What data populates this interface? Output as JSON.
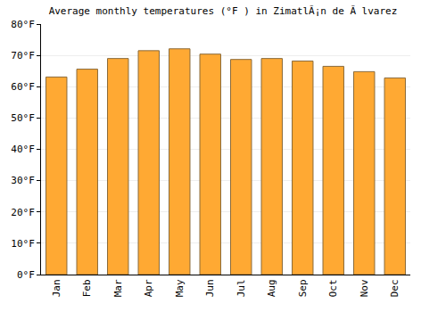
{
  "chart_data": {
    "type": "bar",
    "title": "Average monthly temperatures (°F ) in ZimatlÃ¡n de Ã lvarez",
    "categories": [
      "Jan",
      "Feb",
      "Mar",
      "Apr",
      "May",
      "Jun",
      "Jul",
      "Aug",
      "Sep",
      "Oct",
      "Nov",
      "Dec"
    ],
    "values": [
      63.1,
      65.6,
      69.0,
      71.5,
      72.1,
      70.4,
      68.7,
      69.0,
      68.2,
      66.5,
      64.8,
      62.8
    ],
    "color": "#ffa933",
    "ylim": [
      0,
      80
    ],
    "yticks": [
      {
        "value": 0,
        "label": "0°F"
      },
      {
        "value": 10,
        "label": "10°F"
      },
      {
        "value": 20,
        "label": "20°F"
      },
      {
        "value": 30,
        "label": "30°F"
      },
      {
        "value": 40,
        "label": "40°F"
      },
      {
        "value": 50,
        "label": "50°F"
      },
      {
        "value": 60,
        "label": "60°F"
      },
      {
        "value": 70,
        "label": "70°F"
      },
      {
        "value": 80,
        "label": "80°F"
      }
    ],
    "grid": true
  }
}
